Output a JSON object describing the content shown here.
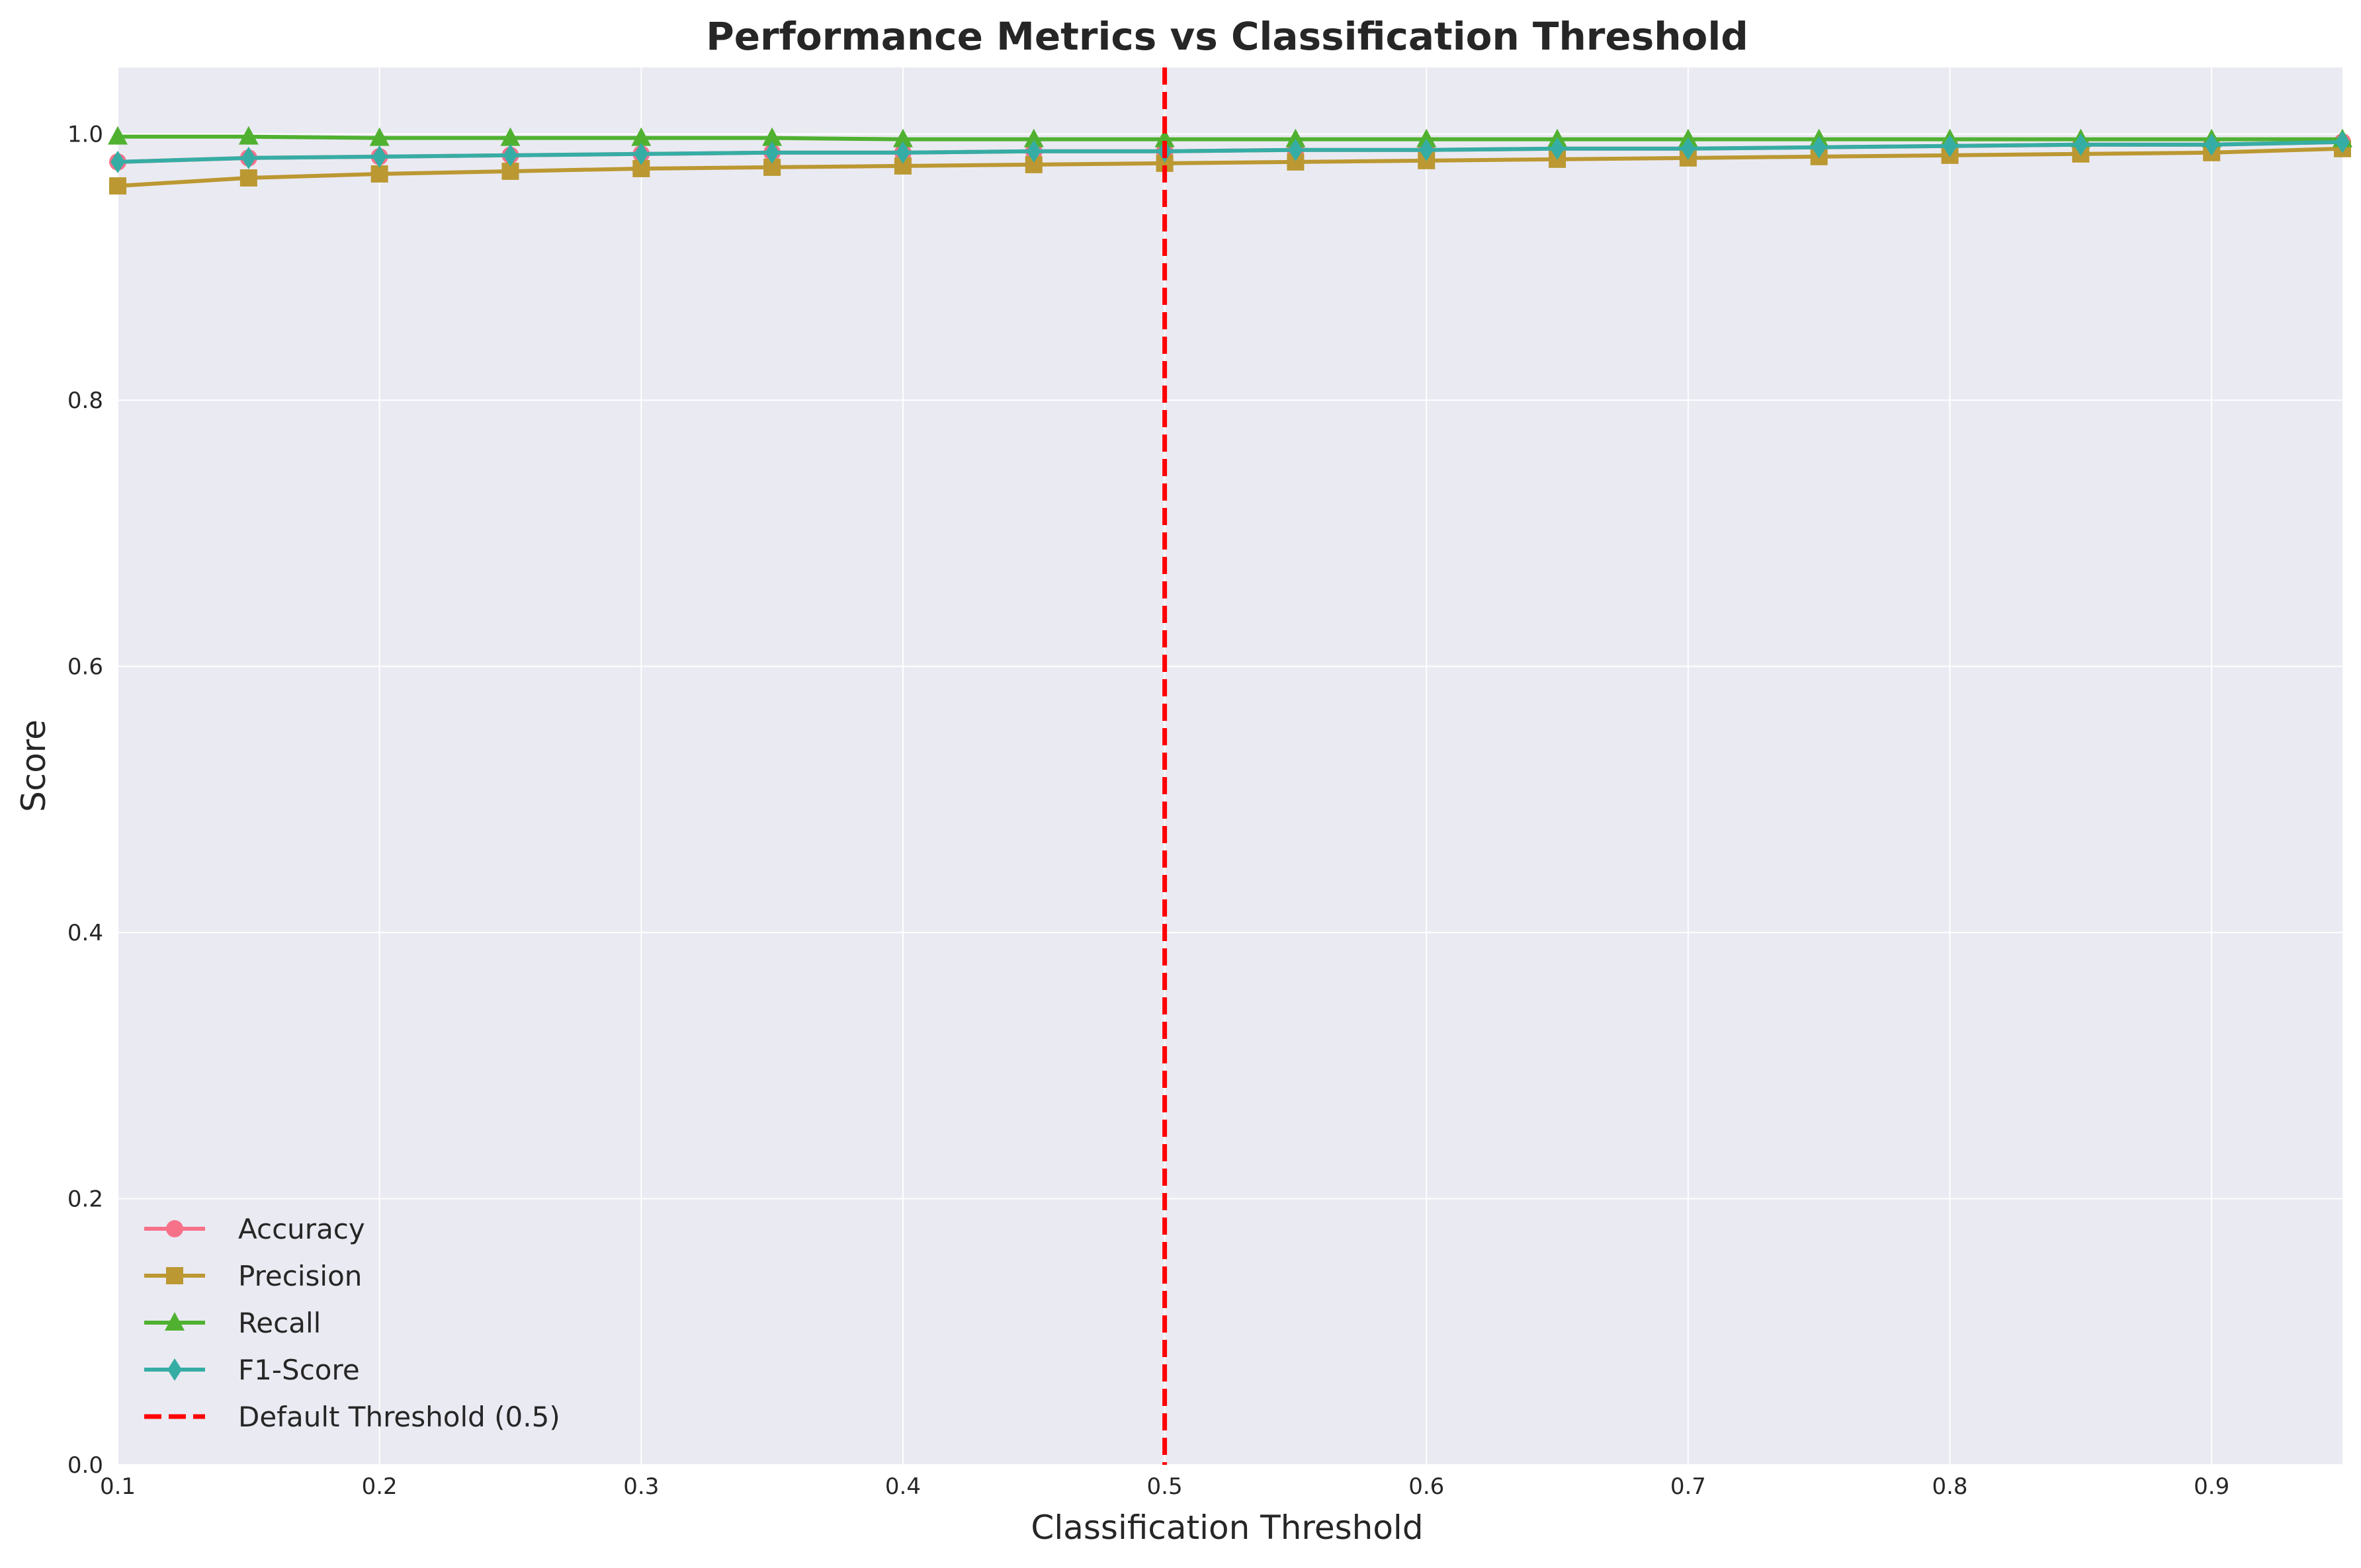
{
  "chart_data": {
    "type": "line",
    "title": "Performance Metrics vs Classification Threshold",
    "xlabel": "Classification Threshold",
    "ylabel": "Score",
    "xlim": [
      0.1,
      0.95
    ],
    "ylim": [
      0.0,
      1.05
    ],
    "x_ticks": [
      "0.1",
      "0.2",
      "0.3",
      "0.4",
      "0.5",
      "0.6",
      "0.7",
      "0.8",
      "0.9"
    ],
    "y_ticks": [
      "0.0",
      "0.2",
      "0.4",
      "0.6",
      "0.8",
      "1.0"
    ],
    "grid": true,
    "legend_position": "lower-left",
    "x": [
      0.1,
      0.15,
      0.2,
      0.25,
      0.3,
      0.35,
      0.4,
      0.45,
      0.5,
      0.55,
      0.6,
      0.65,
      0.7,
      0.75,
      0.8,
      0.85,
      0.9,
      0.95
    ],
    "series": [
      {
        "name": "Accuracy",
        "color": "#f77189",
        "marker": "circle",
        "values": [
          0.979,
          0.982,
          0.983,
          0.984,
          0.985,
          0.986,
          0.986,
          0.987,
          0.987,
          0.988,
          0.988,
          0.989,
          0.989,
          0.99,
          0.991,
          0.992,
          0.992,
          0.994
        ]
      },
      {
        "name": "Precision",
        "color": "#bb9832",
        "marker": "square",
        "values": [
          0.961,
          0.967,
          0.97,
          0.972,
          0.974,
          0.975,
          0.976,
          0.977,
          0.978,
          0.979,
          0.98,
          0.981,
          0.982,
          0.983,
          0.984,
          0.985,
          0.986,
          0.989
        ]
      },
      {
        "name": "Recall",
        "color": "#50b131",
        "marker": "triangle",
        "values": [
          0.998,
          0.998,
          0.997,
          0.997,
          0.997,
          0.997,
          0.996,
          0.996,
          0.996,
          0.996,
          0.996,
          0.996,
          0.996,
          0.996,
          0.996,
          0.996,
          0.996,
          0.996
        ]
      },
      {
        "name": "F1-Score",
        "color": "#36ada4",
        "marker": "diamond",
        "values": [
          0.979,
          0.982,
          0.983,
          0.984,
          0.985,
          0.986,
          0.986,
          0.987,
          0.987,
          0.988,
          0.988,
          0.989,
          0.989,
          0.99,
          0.991,
          0.992,
          0.992,
          0.994
        ]
      }
    ],
    "reference_line": {
      "name": "Default Threshold (0.5)",
      "x": 0.5,
      "color": "#ff0000",
      "style": "dashed"
    }
  }
}
